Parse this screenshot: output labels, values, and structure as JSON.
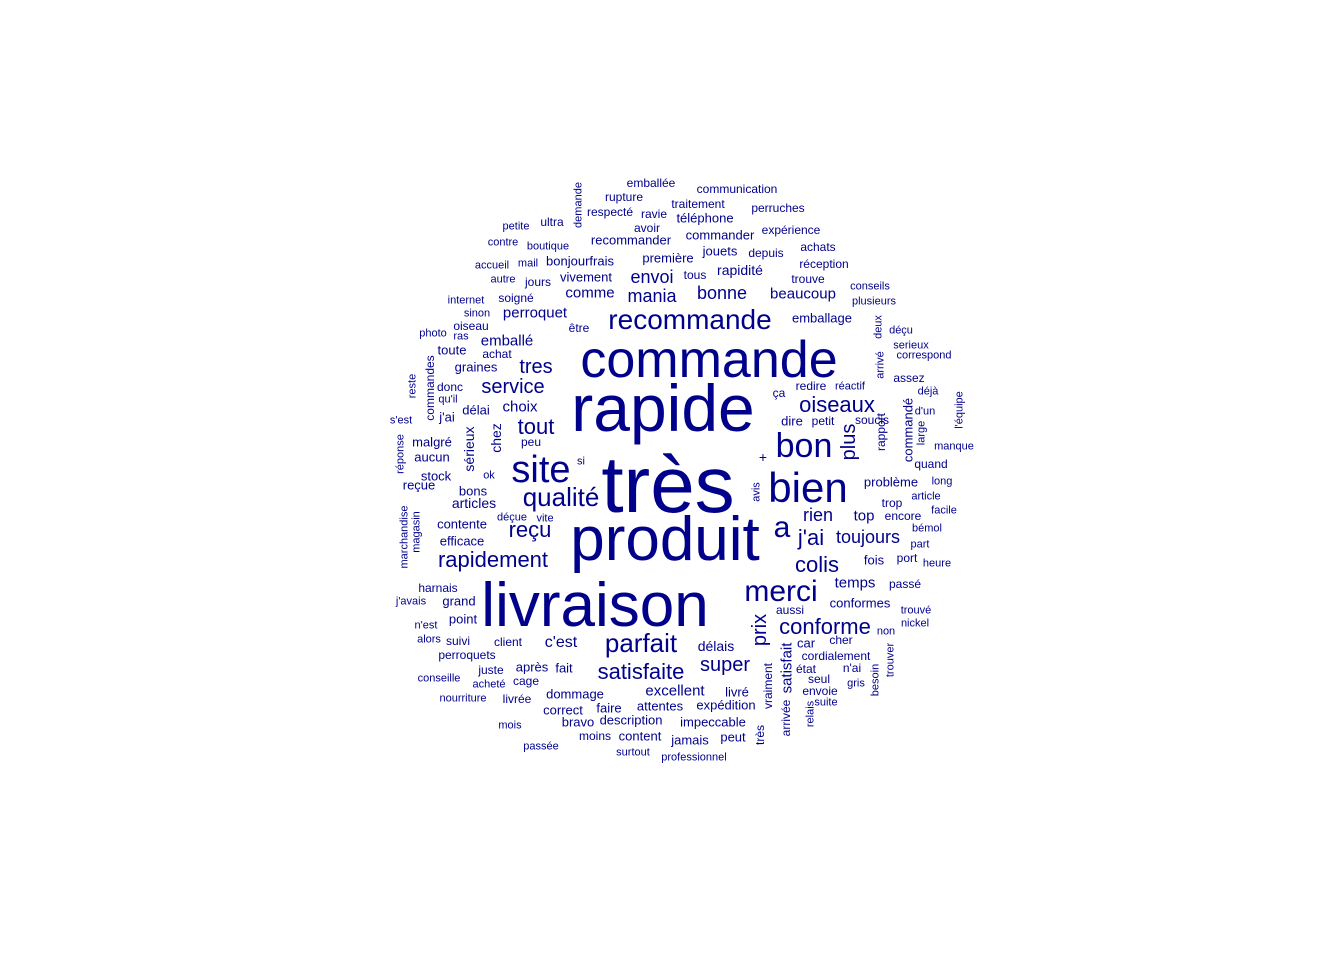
{
  "color": "#00008B",
  "words": [
    "très",
    "produit",
    "rapide",
    "commande",
    "livraison",
    "bien",
    "site",
    "bon",
    "recommande",
    "merci",
    "qualité",
    "a",
    "parfait",
    "rapidement",
    "reçu",
    "colis",
    "j'ai",
    "satisfaite",
    "oiseaux",
    "conforme",
    "tout",
    "super",
    "prix",
    "service",
    "rien",
    "toujours",
    "tres",
    "plus",
    "mania",
    "bonne",
    "envoi",
    "c'est",
    "beaucoup",
    "temps",
    "excellent",
    "choix",
    "satisfait",
    "top",
    "emballé",
    "perroquet",
    "comme",
    "délais",
    "sérieux",
    "chez",
    "articles",
    "rapidité",
    "emballage",
    "conformes",
    "fois",
    "graines",
    "dire",
    "problème",
    "commandé",
    "efficace",
    "contente",
    "première",
    "commander",
    "recommander",
    "vivement",
    "jouets",
    "bonjourfrais",
    "réception",
    "trouve",
    "achats",
    "depuis",
    "téléphone",
    "communication",
    "emballée",
    "rupture",
    "traitement",
    "perruches",
    "expérience",
    "respecté",
    "ravie",
    "avoir",
    "ultra",
    "petite",
    "demande",
    "contre",
    "boutique",
    "accueil",
    "mail",
    "autre",
    "jours",
    "tous",
    "conseils",
    "plusieurs",
    "internet",
    "soigné",
    "sinon",
    "oiseau",
    "photo",
    "ras",
    "deux",
    "déçu",
    "serieux",
    "correspond",
    "arrivé",
    "achat",
    "toute",
    "commandes",
    "assez",
    "réactif",
    "redire",
    "ça",
    "donc",
    "qu'il",
    "reste",
    "déjà",
    "d'un",
    "l'équipe",
    "s'est",
    "j'ai",
    "délai",
    "petit",
    "soucis",
    "rapport",
    "large",
    "manque",
    "quand",
    "malgré",
    "aucun",
    "peu",
    "si",
    "réponse",
    "stock",
    "reçue",
    "ok",
    "+",
    "long",
    "avis",
    "bons",
    "article",
    "facile",
    "trop",
    "encore",
    "bémol",
    "marchandise",
    "magasin",
    "déçue",
    "vite",
    "part",
    "port",
    "heure",
    "passé",
    "harnais",
    "grand",
    "j'avais",
    "aussi",
    "trouvé",
    "n'est",
    "point",
    "nickel",
    "alors",
    "suivi",
    "client",
    "car",
    "cher",
    "non",
    "perroquets",
    "état",
    "cordialement",
    "n'ai",
    "besoin",
    "trouver",
    "juste",
    "après",
    "fait",
    "conseille",
    "cage",
    "acheté",
    "seul",
    "gris",
    "livré",
    "envoie",
    "nourriture",
    "livrée",
    "dommage",
    "vraiment",
    "suite",
    "relais",
    "correct",
    "faire",
    "attentes",
    "expédition",
    "mois",
    "bravo",
    "description",
    "impeccable",
    "arrivée",
    "très",
    "moins",
    "content",
    "jamais",
    "peut",
    "passée",
    "surtout",
    "professionnel",
    "être"
  ]
}
